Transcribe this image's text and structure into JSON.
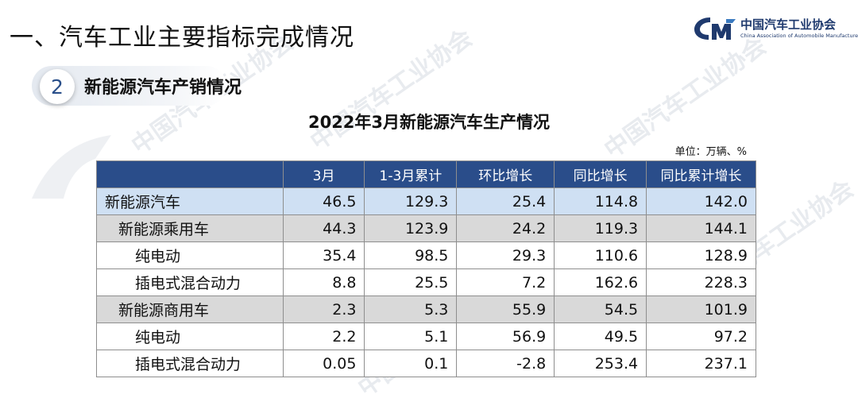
{
  "page": {
    "heading": "一、汽车工业主要指标完成情况",
    "section_number": "2",
    "section_title": "新能源汽车产销情况"
  },
  "logo": {
    "name_cn": "中国汽车工业协会",
    "name_en": "China Association of Automobile Manufacturers"
  },
  "watermark_text": "中国汽车工业协会",
  "table": {
    "title": "2022年3月新能源汽车生产情况",
    "unit": "单位：万辆、%",
    "headers": [
      "",
      "3月",
      "1-3月累计",
      "环比增长",
      "同比增长",
      "同比累计增长"
    ],
    "rows": [
      {
        "level": 1,
        "cells": [
          "新能源汽车",
          "46.5",
          "129.3",
          "25.4",
          "114.8",
          "142.0"
        ]
      },
      {
        "level": 2,
        "cells": [
          "新能源乘用车",
          "44.3",
          "123.9",
          "24.2",
          "119.3",
          "144.1"
        ]
      },
      {
        "level": 3,
        "cells": [
          "纯电动",
          "35.4",
          "98.5",
          "29.3",
          "110.6",
          "128.9"
        ]
      },
      {
        "level": 3,
        "cells": [
          "插电式混合动力",
          "8.8",
          "25.5",
          "7.2",
          "162.6",
          "228.3"
        ]
      },
      {
        "level": 2,
        "cells": [
          "新能源商用车",
          "2.3",
          "5.3",
          "55.9",
          "54.5",
          "101.9"
        ]
      },
      {
        "level": 3,
        "cells": [
          "纯电动",
          "2.2",
          "5.1",
          "56.9",
          "49.5",
          "97.2"
        ]
      },
      {
        "level": 3,
        "cells": [
          "插电式混合动力",
          "0.05",
          "0.1",
          "-2.8",
          "253.4",
          "237.1"
        ]
      }
    ]
  },
  "colors": {
    "header_bg": "#2a4d8a",
    "level1_bg": "#cfe0f3",
    "level2_bg": "#d9d9d9",
    "brand": "#1f3a6e"
  }
}
